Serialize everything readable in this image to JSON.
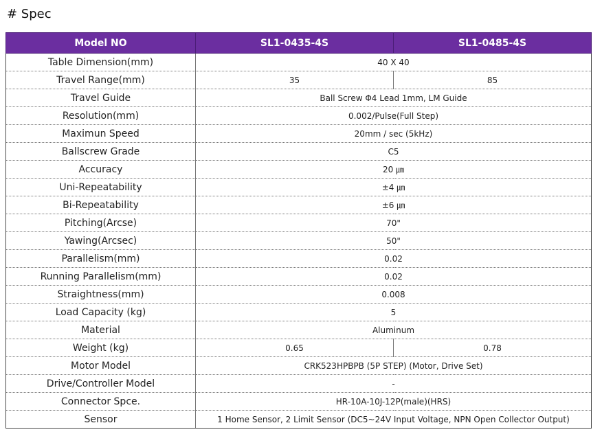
{
  "heading": "# Spec",
  "header": {
    "col1": "Model NO",
    "col2": "SL1-0435-4S",
    "col3": "SL1-0485-4S"
  },
  "rows": [
    {
      "label": "Table Dimension(mm)",
      "value": "40 X 40"
    },
    {
      "label": "Travel Range(mm)",
      "value_a": "35",
      "value_b": "85"
    },
    {
      "label": "Travel Guide",
      "value": "Ball Screw Φ4 Lead 1mm, LM Guide"
    },
    {
      "label": "Resolution(mm)",
      "value": "0.002/Pulse(Full Step)"
    },
    {
      "label": "Maximun Speed",
      "value": "20mm / sec (5kHz)"
    },
    {
      "label": "Ballscrew Grade",
      "value": "C5"
    },
    {
      "label": "Accuracy",
      "value": "20 ㎛"
    },
    {
      "label": "Uni-Repeatability",
      "value": "±4 ㎛"
    },
    {
      "label": "Bi-Repeatability",
      "value": "±6 ㎛"
    },
    {
      "label": "Pitching(Arcse)",
      "value": "70\""
    },
    {
      "label": "Yawing(Arcsec)",
      "value": "50\""
    },
    {
      "label": "Parallelism(mm)",
      "value": "0.02"
    },
    {
      "label": "Running Parallelism(mm)",
      "value": "0.02"
    },
    {
      "label": "Straightness(mm)",
      "value": "0.008"
    },
    {
      "label": "Load Capacity (kg)",
      "value": "5"
    },
    {
      "label": "Material",
      "value": "Aluminum"
    },
    {
      "label": "Weight (kg)",
      "value_a": "0.65",
      "value_b": "0.78"
    },
    {
      "label": "Motor Model",
      "value": "CRK523HPBPB (5P STEP) (Motor, Drive Set)"
    },
    {
      "label": "Drive/Controller Model",
      "value": "-"
    },
    {
      "label": "Connector Spce.",
      "value": "HR-10A-10J-12P(male)(HRS)"
    },
    {
      "label": "Sensor",
      "value": "1 Home Sensor, 2 Limit Sensor (DC5~24V Input Voltage, NPN Open Collector Output)"
    }
  ]
}
